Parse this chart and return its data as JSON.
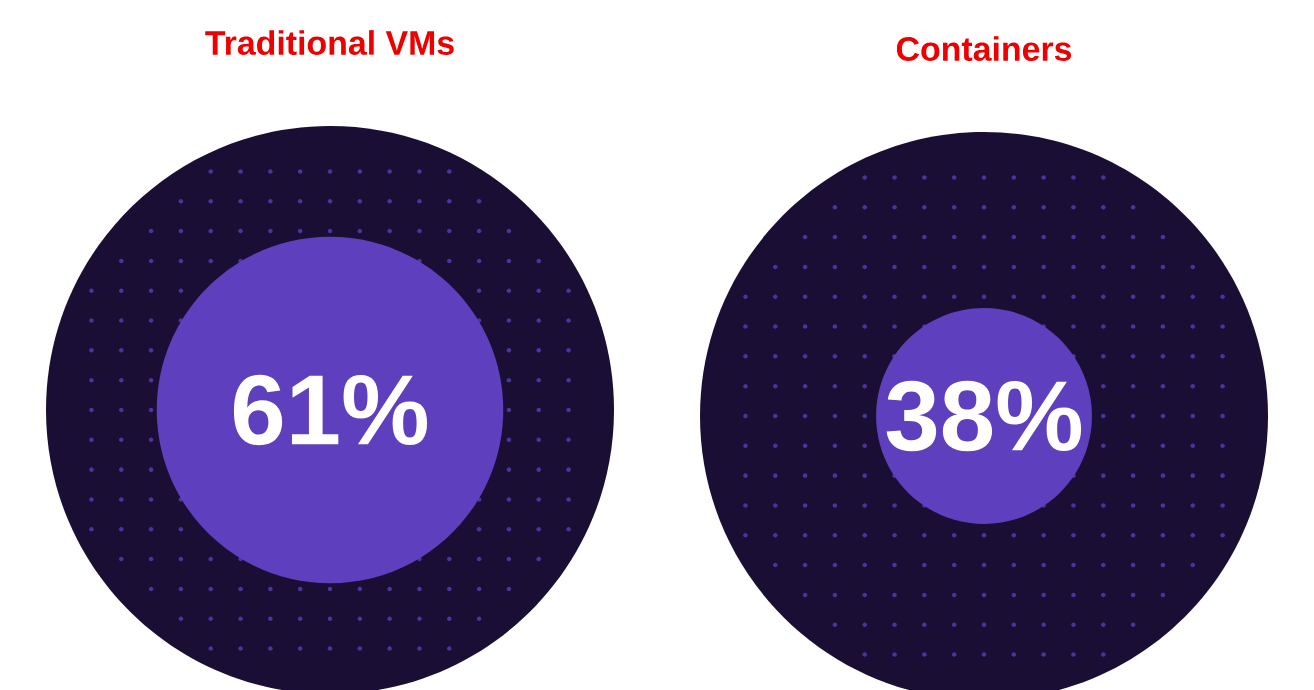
{
  "chart_data": [
    {
      "type": "other",
      "title": "Traditional VMs",
      "values": [
        61
      ],
      "value_labels": [
        "61%"
      ],
      "color": "#5e40be"
    },
    {
      "type": "other",
      "title": "Containers",
      "values": [
        38
      ],
      "value_labels": [
        "38%"
      ],
      "color": "#5e40be"
    }
  ]
}
